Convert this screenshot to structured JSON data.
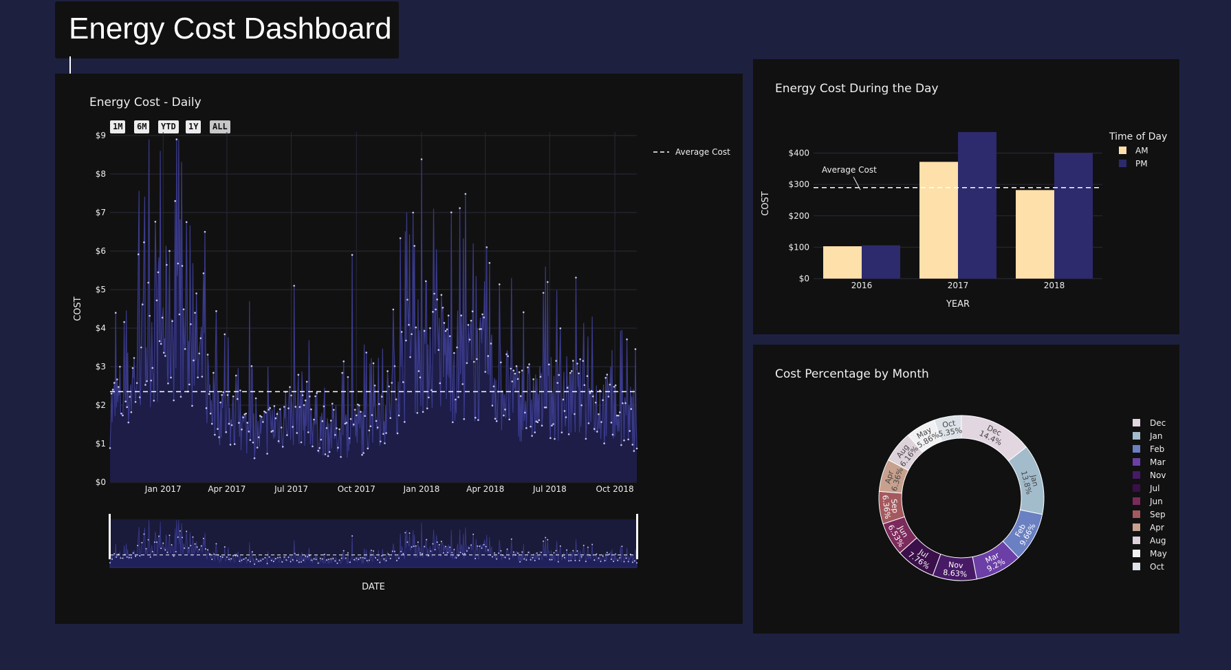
{
  "header": {
    "title": "Energy Cost Dashboard"
  },
  "daily": {
    "title": "Energy Cost - Daily",
    "range_buttons": [
      "1M",
      "6M",
      "YTD",
      "1Y",
      "ALL"
    ],
    "active_button": "ALL",
    "xlabel": "DATE",
    "ylabel": "COST",
    "legend_label": "Average Cost"
  },
  "hourly": {
    "title": "Energy Cost During the Day",
    "xlabel": "YEAR",
    "ylabel": "COST",
    "legend_title": "Time of Day",
    "annotation": "Average Cost"
  },
  "monthly": {
    "title": "Cost Percentage by Month"
  },
  "colors": {
    "page_bg": "#1e2040",
    "panel_bg": "#111111",
    "line": "#3a3a8c",
    "am": "#fde0aa",
    "pm": "#2d2a6e"
  },
  "chart_data": [
    {
      "type": "line",
      "title": "Energy Cost - Daily",
      "xlabel": "DATE",
      "ylabel": "COST",
      "x_range": [
        "2016-10-18",
        "2018-11-01"
      ],
      "ylim": [
        0,
        9
      ],
      "y_ticks": [
        "$0",
        "$1",
        "$2",
        "$3",
        "$4",
        "$5",
        "$6",
        "$7",
        "$8",
        "$9"
      ],
      "x_ticks": [
        "Jan 2017",
        "Apr 2017",
        "Jul 2017",
        "Oct 2017",
        "Jan 2018",
        "Apr 2018",
        "Jul 2018",
        "Oct 2018"
      ],
      "average_cost": 2.35,
      "monthly_profile": {
        "x": [
          "2016-10-15",
          "2016-11-15",
          "2016-12-15",
          "2017-01-15",
          "2017-02-15",
          "2017-03-15",
          "2017-04-15",
          "2017-05-15",
          "2017-06-15",
          "2017-07-15",
          "2017-08-15",
          "2017-09-15",
          "2017-10-15",
          "2017-11-15",
          "2017-12-15",
          "2018-01-15",
          "2018-02-15",
          "2018-03-15",
          "2018-04-15",
          "2018-05-15",
          "2018-06-15",
          "2018-07-15",
          "2018-08-15",
          "2018-09-15",
          "2018-10-15"
        ],
        "y": [
          1.9,
          2.6,
          4.2,
          4.5,
          3.7,
          2.2,
          1.6,
          1.3,
          1.8,
          2.1,
          1.5,
          1.4,
          1.6,
          2.2,
          3.6,
          3.9,
          3.3,
          3.3,
          2.9,
          2.3,
          2.2,
          2.4,
          2.3,
          2.1,
          1.8
        ]
      },
      "peaks": {
        "x": [
          "2016-12-28",
          "2017-01-18",
          "2017-03-01",
          "2017-05-03",
          "2017-07-05",
          "2017-09-25",
          "2017-12-20",
          "2018-01-18",
          "2018-03-15",
          "2018-04-03",
          "2018-06-25",
          "2018-09-25"
        ],
        "y": [
          8.6,
          7.3,
          6.5,
          4.7,
          5.1,
          5.9,
          7.0,
          7.1,
          6.2,
          6.1,
          5.6,
          3.0
        ]
      },
      "series": [
        {
          "name": "Average Cost",
          "value": 2.35
        }
      ]
    },
    {
      "type": "bar",
      "title": "Energy Cost During the Day",
      "categories": [
        "2016",
        "2017",
        "2018"
      ],
      "xlabel": "YEAR",
      "ylabel": "COST",
      "ylim": [
        0,
        480
      ],
      "y_ticks": [
        "$0",
        "$100",
        "$200",
        "$300",
        "$400"
      ],
      "average": 290,
      "legend_title": "Time of Day",
      "series": [
        {
          "name": "AM",
          "values": [
            103,
            372,
            282
          ]
        },
        {
          "name": "PM",
          "values": [
            106,
            467,
            400
          ]
        }
      ]
    },
    {
      "type": "pie",
      "title": "Cost Percentage by Month",
      "labels": [
        "Dec",
        "Jan",
        "Feb",
        "Mar",
        "Nov",
        "Jul",
        "Jun",
        "Sep",
        "Apr",
        "Aug",
        "May",
        "Oct"
      ],
      "values": [
        14.4,
        13.8,
        9.66,
        9.2,
        8.63,
        7.76,
        6.53,
        6.36,
        6.36,
        6.16,
        5.86,
        5.35
      ],
      "text": [
        "14.4%",
        "13.8%",
        "9.66%",
        "9.2%",
        "8.63%",
        "7.76%",
        "6.53%",
        "6.36%",
        "6.36%",
        "6.16%",
        "5.86%",
        "5.35%"
      ],
      "colors": [
        "#e2d6e0",
        "#a3bccc",
        "#6a80c2",
        "#6b3fa6",
        "#471a66",
        "#3a0f4a",
        "#7c2a5c",
        "#a4595e",
        "#c7a08e",
        "#ddd2d9",
        "#f1f1f3",
        "#dce2e8"
      ],
      "hole": true
    }
  ]
}
